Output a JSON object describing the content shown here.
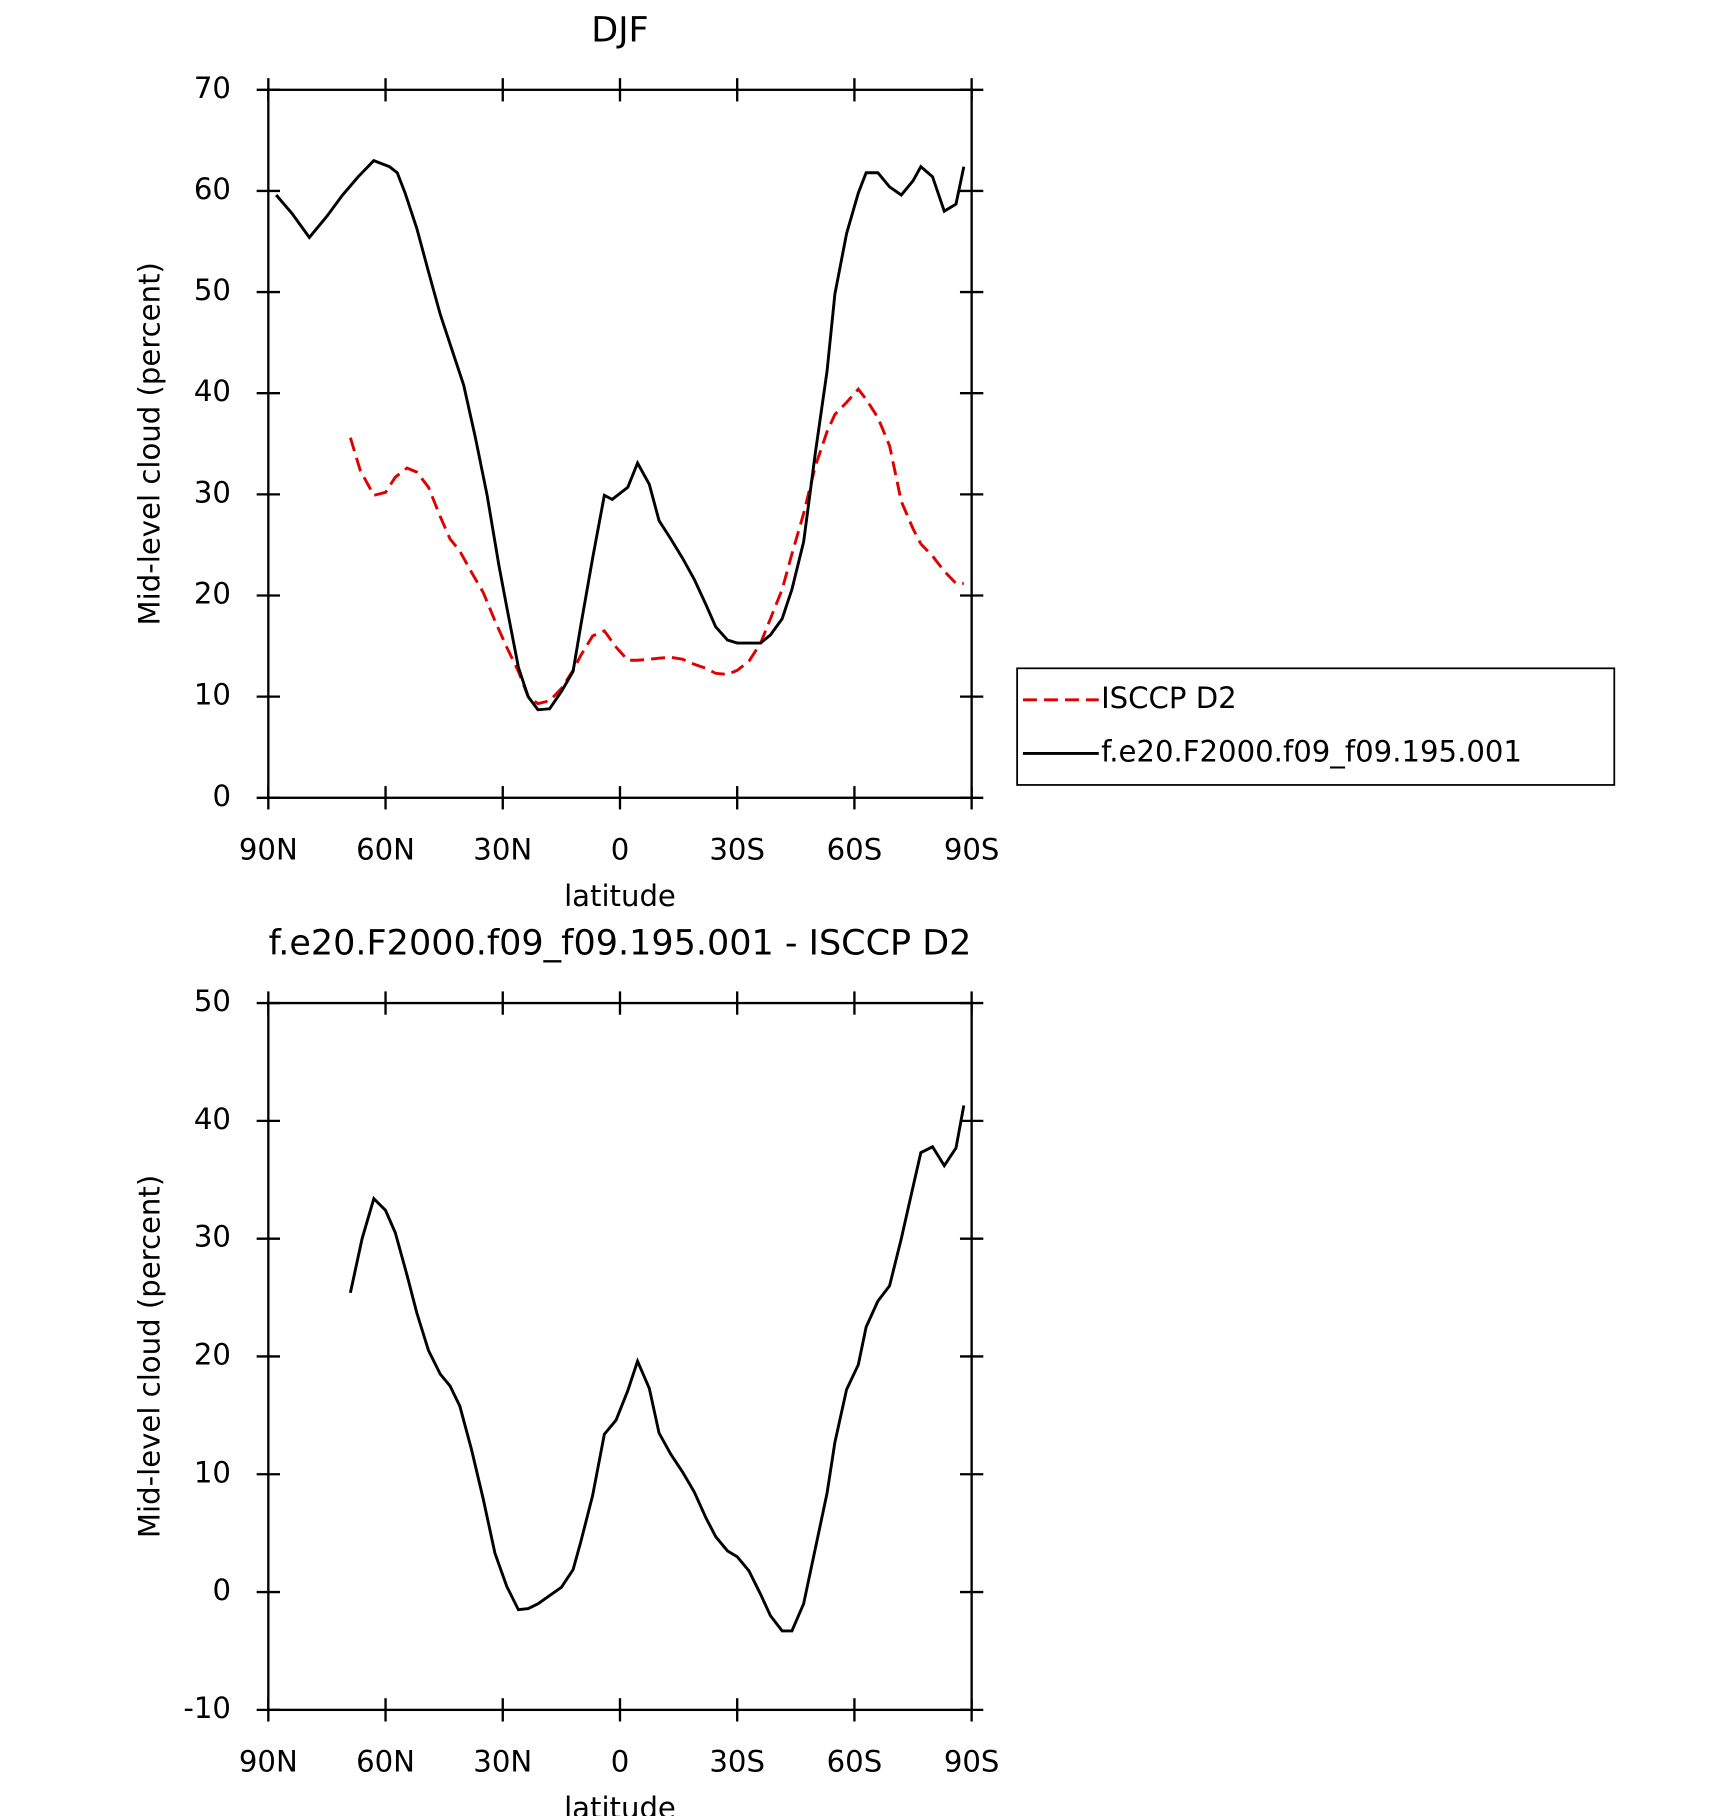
{
  "chart_data": [
    {
      "type": "line",
      "title": "DJF",
      "xlabel": "latitude",
      "ylabel": "Mid-level cloud (percent)",
      "xlim": [
        90,
        -90
      ],
      "xticks": [
        {
          "value": 90,
          "label": "90N"
        },
        {
          "value": 60,
          "label": "60N"
        },
        {
          "value": 30,
          "label": "30N"
        },
        0,
        {
          "value": -30,
          "label": "30S"
        },
        {
          "value": -60,
          "label": "60S"
        },
        {
          "value": -90,
          "label": "90S"
        }
      ],
      "ylim": [
        0,
        70
      ],
      "yticks": [
        0,
        10,
        20,
        30,
        40,
        50,
        60,
        70
      ],
      "legend": "right",
      "series": [
        {
          "name": "ISCCP D2",
          "color": "#e00000",
          "line_style": "dashed",
          "x": [
            69,
            66.5,
            63,
            60,
            57.5,
            54.5,
            52,
            49,
            46,
            43.5,
            41,
            38,
            35,
            32,
            29,
            26,
            23.5,
            21,
            18,
            15,
            12,
            10,
            7,
            4,
            1,
            -2,
            -4.5,
            -7.5,
            -10,
            -13,
            -16,
            -19,
            -22,
            -24.5,
            -27.5,
            -30,
            -33,
            -36,
            -38.5,
            -41.5,
            -44,
            -47,
            -50,
            -53,
            -55,
            -58,
            -61,
            -63,
            -66,
            -69,
            -72,
            -75,
            -77,
            -80,
            -83,
            -86,
            -88
          ],
          "values": [
            35.6,
            32.4,
            29.9,
            30.2,
            31.7,
            32.6,
            32.2,
            30.7,
            27.8,
            25.6,
            24.4,
            22.3,
            20.3,
            17.5,
            14.9,
            12.5,
            10,
            9.3,
            9.6,
            10.8,
            12.6,
            14.1,
            16,
            16.5,
            14.9,
            13.6,
            13.6,
            13.7,
            13.8,
            13.9,
            13.7,
            13.2,
            12.8,
            12.3,
            12.2,
            12.6,
            13.5,
            15.3,
            17.7,
            20.6,
            24.1,
            28.1,
            32.8,
            36.2,
            37.9,
            39.1,
            40.4,
            39.4,
            37.6,
            34.8,
            29.3,
            26.6,
            25.1,
            23.9,
            22.4,
            21.2,
            21.2
          ]
        },
        {
          "name": "f.e20.F2000.f09_f09.195.001",
          "color": "#000000",
          "line_style": "solid",
          "x": [
            88,
            84,
            79.5,
            75,
            71,
            67,
            63,
            59,
            57,
            55,
            52,
            49,
            46,
            43,
            40,
            37,
            34,
            31,
            29,
            26,
            23.5,
            21,
            18,
            15,
            12,
            10,
            7,
            4,
            2,
            -2,
            -4.5,
            -7.5,
            -10,
            -13,
            -16,
            -19,
            -22,
            -24.5,
            -27.5,
            -30,
            -36,
            -38.5,
            -41.5,
            -44,
            -47,
            -50,
            -53,
            -55,
            -58,
            -61,
            -63,
            -66,
            -69,
            -72,
            -75,
            -77,
            -80,
            -83,
            -86,
            -88
          ],
          "values": [
            59.6,
            57.8,
            55.4,
            57.5,
            59.6,
            61.4,
            63,
            62.4,
            61.8,
            59.8,
            56.3,
            52,
            47.8,
            44.3,
            40.8,
            35.6,
            29.9,
            23,
            18.9,
            12.9,
            10,
            8.7,
            8.8,
            10.5,
            12.5,
            17.1,
            23.7,
            29.9,
            29.5,
            30.7,
            33.1,
            31,
            27.4,
            25.6,
            23.7,
            21.6,
            19.1,
            16.9,
            15.6,
            15.3,
            15.3,
            16.1,
            17.7,
            20.6,
            25.3,
            34.1,
            42.2,
            49.8,
            55.8,
            59.8,
            61.8,
            61.8,
            60.4,
            59.6,
            61,
            62.4,
            61.4,
            58,
            58.7,
            62.4
          ]
        }
      ]
    },
    {
      "type": "line",
      "title": "f.e20.F2000.f09_f09.195.001 - ISCCP D2",
      "xlabel": "latitude",
      "ylabel": "Mid-level cloud (percent)",
      "xlim": [
        90,
        -90
      ],
      "xticks": [
        {
          "value": 90,
          "label": "90N"
        },
        {
          "value": 60,
          "label": "60N"
        },
        {
          "value": 30,
          "label": "30N"
        },
        0,
        {
          "value": -30,
          "label": "30S"
        },
        {
          "value": -60,
          "label": "60S"
        },
        {
          "value": -90,
          "label": "90S"
        }
      ],
      "ylim": [
        -10,
        50
      ],
      "yticks": [
        -10,
        0,
        10,
        20,
        30,
        40,
        50
      ],
      "series": [
        {
          "color": "#000000",
          "line_style": "solid",
          "x": [
            69,
            66,
            63,
            60,
            57.5,
            54.5,
            52,
            49,
            46,
            43.5,
            41,
            38,
            35,
            32,
            29,
            26,
            23.5,
            21,
            18,
            15,
            12,
            10,
            7,
            4,
            1,
            -2,
            -4.5,
            -7.5,
            -10,
            -13,
            -16,
            -19,
            -22,
            -24.5,
            -27.5,
            -30,
            -33,
            -36,
            -38.5,
            -41.5,
            -44,
            -47,
            -50,
            -53,
            -55,
            -58,
            -61,
            -63,
            -66,
            -69,
            -72,
            -75,
            -77,
            -80,
            -83,
            -86,
            -88
          ],
          "values": [
            25.4,
            30,
            33.4,
            32.4,
            30.5,
            26.9,
            23.7,
            20.5,
            18.5,
            17.5,
            15.8,
            12.1,
            7.9,
            3.3,
            0.5,
            -1.5,
            -1.4,
            -1,
            -0.3,
            0.4,
            1.9,
            4.3,
            8.2,
            13.4,
            14.6,
            17.1,
            19.6,
            17.3,
            13.5,
            11.7,
            10.2,
            8.5,
            6.3,
            4.7,
            3.5,
            3,
            1.8,
            -0.2,
            -2,
            -3.3,
            -3.3,
            -1,
            3.7,
            8.4,
            12.7,
            17.2,
            19.3,
            22.5,
            24.7,
            26,
            30,
            34.4,
            37.3,
            37.8,
            36.2,
            37.7,
            41.3
          ]
        }
      ]
    }
  ]
}
